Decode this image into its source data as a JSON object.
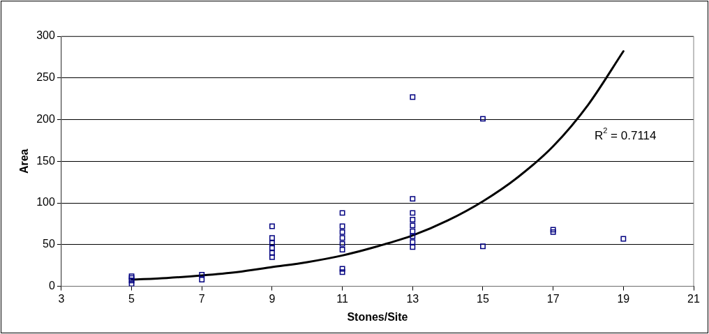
{
  "chart_data": {
    "type": "scatter",
    "xlabel": "Stones/Site",
    "ylabel": "Area",
    "xlim": [
      3,
      21
    ],
    "xticks": [
      3,
      5,
      7,
      9,
      11,
      13,
      15,
      17,
      19,
      21
    ],
    "ylim": [
      0,
      300
    ],
    "yticks": [
      0,
      50,
      100,
      150,
      200,
      250,
      300
    ],
    "grid": "y",
    "legend": false,
    "marker": "square",
    "annotations": [
      "R$^{2}$ = 0.7114"
    ],
    "series": [
      {
        "color": "#000080",
        "x": [
          5,
          5,
          5,
          5,
          7,
          7,
          9,
          9,
          9,
          9,
          9,
          9,
          11,
          11,
          11,
          11,
          11,
          11,
          11,
          11,
          13,
          13,
          13,
          13,
          13,
          13,
          13,
          13,
          13,
          15,
          15,
          17,
          17,
          19
        ],
        "values": [
          12,
          10,
          7,
          3,
          14,
          8,
          72,
          58,
          52,
          46,
          40,
          35,
          88,
          72,
          65,
          58,
          51,
          44,
          21,
          17,
          227,
          105,
          88,
          80,
          73,
          66,
          60,
          53,
          47,
          201,
          48,
          68,
          65,
          57
        ]
      },
      {
        "type": "line",
        "color": "#000000",
        "marker": "none",
        "x": [
          5,
          6,
          7,
          8,
          9,
          10,
          11,
          12,
          13,
          14,
          15,
          16,
          17,
          18,
          19
        ],
        "values": [
          8,
          10,
          13,
          17,
          23,
          29,
          37,
          48,
          61,
          79,
          102,
          131,
          168,
          218,
          282
        ]
      }
    ]
  }
}
